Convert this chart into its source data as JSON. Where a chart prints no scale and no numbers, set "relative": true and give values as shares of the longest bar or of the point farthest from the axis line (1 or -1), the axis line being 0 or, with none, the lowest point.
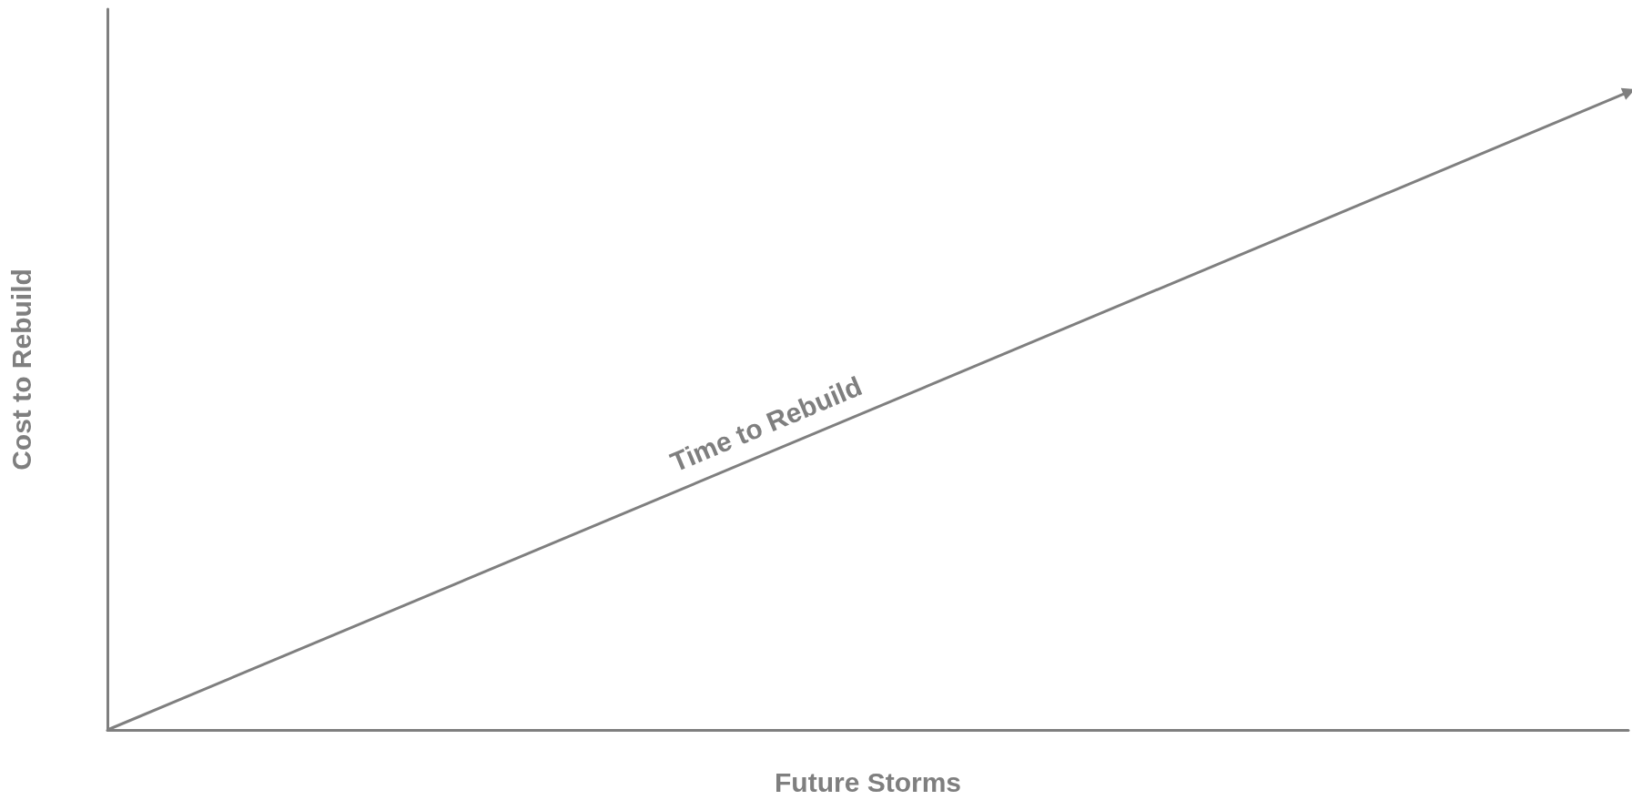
{
  "chart_data": {
    "type": "line",
    "relative": true,
    "categories": [
      null,
      null
    ],
    "series": [
      {
        "color": "#7f7f7f",
        "values": [
          0,
          1
        ]
      }
    ],
    "xlabel": "Future Storms",
    "ylabel": "Cost to Rebuild",
    "annotations": [
      "Time to Rebuild"
    ],
    "grid": false
  }
}
